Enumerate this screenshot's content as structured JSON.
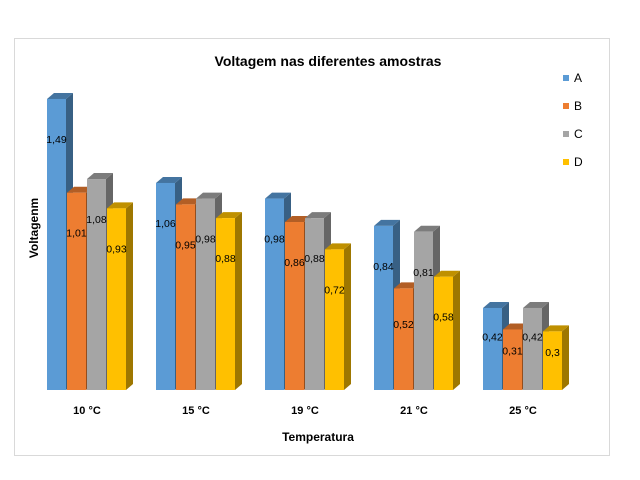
{
  "chart_data": {
    "type": "bar",
    "title": "Voltagem nas diferentes amostras",
    "xlabel": "Temperatura",
    "ylabel": "Voltagenm",
    "categories": [
      "10 °C",
      "15 °C",
      "19 °C",
      "21 °C",
      "25 °C"
    ],
    "series": [
      {
        "name": "A",
        "color": "#5b9bd5",
        "values": [
          1.49,
          1.06,
          0.98,
          0.84,
          0.42
        ],
        "labels": [
          "1,49",
          "1,06",
          "0,98",
          "0,84",
          "0,42"
        ]
      },
      {
        "name": "B",
        "color": "#ed7d31",
        "values": [
          1.01,
          0.95,
          0.86,
          0.52,
          0.31
        ],
        "labels": [
          "1,01",
          "0,95",
          "0,86",
          "0,52",
          "0,31"
        ]
      },
      {
        "name": "C",
        "color": "#a5a5a5",
        "values": [
          1.08,
          0.98,
          0.88,
          0.81,
          0.42
        ],
        "labels": [
          "1,08",
          "0,98",
          "0,88",
          "0,81",
          "0,42"
        ]
      },
      {
        "name": "D",
        "color": "#ffc000",
        "values": [
          0.93,
          0.88,
          0.72,
          0.58,
          0.3
        ],
        "labels": [
          "0,93",
          "0,88",
          "0,72",
          "0,58",
          "0,3"
        ]
      }
    ],
    "ylim": [
      0,
      1.5
    ],
    "bar_style": "3d",
    "legend_position": "right",
    "grid": false
  }
}
